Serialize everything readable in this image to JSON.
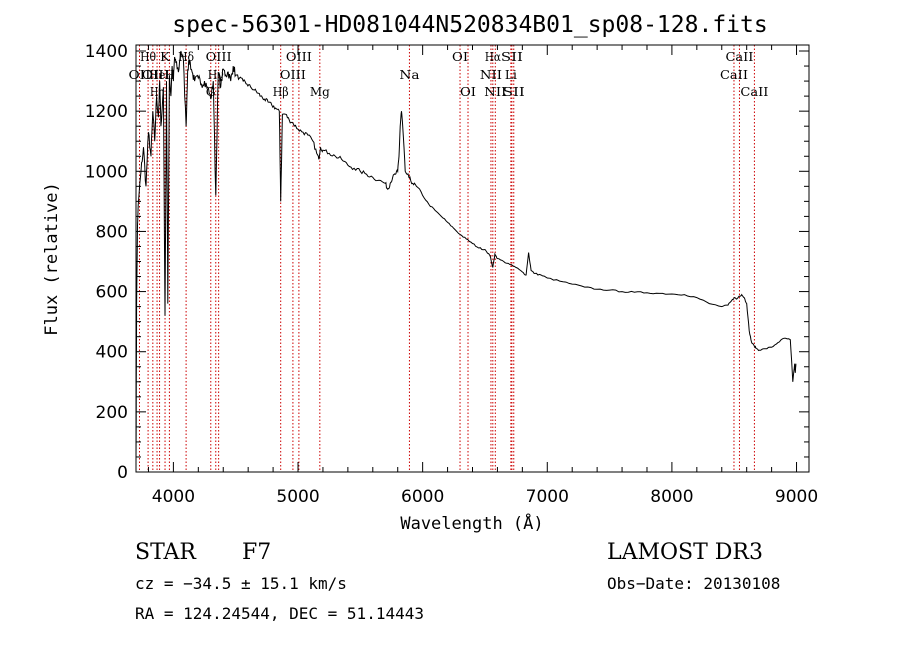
{
  "chart_data": {
    "type": "line",
    "title": "spec-56301-HD081044N520834B01_sp08-128.fits",
    "xlabel": "Wavelength (Å)",
    "ylabel": "Flux (relative)",
    "xlim": [
      3700,
      9100
    ],
    "ylim": [
      0,
      1420
    ],
    "x_ticks": [
      4000,
      5000,
      6000,
      7000,
      8000,
      9000
    ],
    "y_ticks": [
      0,
      200,
      400,
      600,
      800,
      1000,
      1200,
      1400
    ],
    "series": [
      {
        "name": "flux",
        "x": [
          3700,
          3705,
          3712,
          3720,
          3740,
          3760,
          3780,
          3800,
          3820,
          3835,
          3850,
          3865,
          3880,
          3890,
          3900,
          3920,
          3933,
          3945,
          3955,
          3968,
          3980,
          3990,
          4000,
          4010,
          4020,
          4040,
          4060,
          4080,
          4102,
          4115,
          4130,
          4150,
          4170,
          4200,
          4225,
          4250,
          4275,
          4300,
          4320,
          4340,
          4360,
          4380,
          4400,
          4420,
          4440,
          4460,
          4480,
          4500,
          4530,
          4560,
          4590,
          4620,
          4650,
          4680,
          4700,
          4730,
          4760,
          4790,
          4820,
          4850,
          4861,
          4875,
          4900,
          4930,
          4960,
          5000,
          5040,
          5080,
          5120,
          5150,
          5167,
          5180,
          5200,
          5250,
          5300,
          5350,
          5400,
          5450,
          5500,
          5550,
          5600,
          5650,
          5700,
          5720,
          5740,
          5760,
          5780,
          5800,
          5810,
          5820,
          5830,
          5840,
          5860,
          5890,
          5920,
          5950,
          6000,
          6050,
          6100,
          6150,
          6200,
          6250,
          6300,
          6350,
          6400,
          6450,
          6500,
          6540,
          6563,
          6580,
          6600,
          6650,
          6700,
          6750,
          6800,
          6830,
          6850,
          6870,
          6900,
          6950,
          7000,
          7100,
          7200,
          7300,
          7400,
          7500,
          7600,
          7700,
          7800,
          7900,
          8000,
          8100,
          8200,
          8300,
          8400,
          8450,
          8480,
          8500,
          8520,
          8540,
          8560,
          8580,
          8600,
          8620,
          8640,
          8660,
          8680,
          8700,
          8750,
          8800,
          8850,
          8900,
          8950,
          8970,
          8985,
          8990,
          8995
        ],
        "values": [
          40,
          560,
          820,
          900,
          1000,
          1080,
          950,
          1130,
          1050,
          1200,
          1100,
          1250,
          1180,
          1300,
          1150,
          1280,
          520,
          1300,
          560,
          1320,
          1250,
          1350,
          1300,
          1380,
          1360,
          1330,
          1400,
          1370,
          1150,
          1340,
          1370,
          1330,
          1300,
          1310,
          1290,
          1300,
          1280,
          1240,
          1300,
          920,
          1330,
          1280,
          1340,
          1320,
          1330,
          1300,
          1350,
          1320,
          1310,
          1300,
          1290,
          1280,
          1270,
          1260,
          1250,
          1240,
          1230,
          1220,
          1210,
          1200,
          900,
          1190,
          1190,
          1170,
          1160,
          1140,
          1130,
          1120,
          1100,
          1060,
          1040,
          1080,
          1070,
          1060,
          1050,
          1040,
          1020,
          1010,
          1000,
          990,
          980,
          970,
          960,
          940,
          960,
          980,
          990,
          1000,
          1050,
          1150,
          1200,
          1150,
          1000,
          980,
          960,
          950,
          920,
          890,
          870,
          850,
          830,
          810,
          790,
          775,
          760,
          745,
          740,
          720,
          680,
          725,
          710,
          700,
          690,
          680,
          665,
          655,
          730,
          670,
          660,
          655,
          645,
          635,
          625,
          615,
          608,
          605,
          600,
          598,
          596,
          594,
          592,
          590,
          580,
          560,
          550,
          555,
          570,
          580,
          575,
          585,
          590,
          580,
          560,
          470,
          430,
          420,
          410,
          405,
          410,
          415,
          430,
          445,
          440,
          300,
          360,
          330,
          360
        ]
      }
    ],
    "lines": [
      {
        "wl": 3728,
        "label": "OII",
        "row": 2,
        "w": 22
      },
      {
        "wl": 3797,
        "label": "Hθ",
        "row": 1,
        "w": 16
      },
      {
        "wl": 3835,
        "label": "OII",
        "row": 2,
        "w": 22
      },
      {
        "wl": 3869,
        "label": "Hη",
        "row": 3,
        "w": 14
      },
      {
        "wl": 3889,
        "label": "HeI",
        "row": 2,
        "w": 20
      },
      {
        "wl": 3933,
        "label": "K",
        "row": 1,
        "w": 10
      },
      {
        "wl": 3968,
        "label": "H",
        "row": 2,
        "w": 10
      },
      {
        "wl": 4102,
        "label": "Hδ",
        "row": 1,
        "w": 16
      },
      {
        "wl": 4300,
        "label": "G",
        "row": 3,
        "w": 10
      },
      {
        "wl": 4340,
        "label": "Hγ",
        "row": 2,
        "w": 16
      },
      {
        "wl": 4363,
        "label": "OIII",
        "row": 1,
        "w": 26
      },
      {
        "wl": 4861,
        "label": "Hβ",
        "row": 3,
        "w": 16
      },
      {
        "wl": 4959,
        "label": "OIII",
        "row": 2,
        "w": 26
      },
      {
        "wl": 5007,
        "label": "OIII",
        "row": 1,
        "w": 26
      },
      {
        "wl": 5175,
        "label": "Mg",
        "row": 3,
        "w": 20
      },
      {
        "wl": 5894,
        "label": "Na",
        "row": 2,
        "w": 20
      },
      {
        "wl": 6300,
        "label": "OI",
        "row": 1,
        "w": 16
      },
      {
        "wl": 6364,
        "label": "OI",
        "row": 3,
        "w": 16
      },
      {
        "wl": 6548,
        "label": "NII",
        "row": 2,
        "w": 22
      },
      {
        "wl": 6563,
        "label": "Hα",
        "row": 1,
        "w": 16
      },
      {
        "wl": 6583,
        "label": "NII",
        "row": 3,
        "w": 22
      },
      {
        "wl": 6708,
        "label": "Li",
        "row": 2,
        "w": 12
      },
      {
        "wl": 6716,
        "label": "SII",
        "row": 1,
        "w": 22
      },
      {
        "wl": 6731,
        "label": "SII",
        "row": 3,
        "w": 22
      },
      {
        "wl": 8498,
        "label": "CaII",
        "row": 2,
        "w": 28
      },
      {
        "wl": 8542,
        "label": "CaII",
        "row": 1,
        "w": 28
      },
      {
        "wl": 8662,
        "label": "CaII",
        "row": 3,
        "w": 28
      }
    ],
    "colors": {
      "lines": "#cc0000",
      "spectrum": "#000000",
      "axes": "#000000"
    }
  },
  "info": {
    "object_type": "STAR",
    "subclass": "F7",
    "survey": "LAMOST DR3",
    "cz": "cz = −34.5 ± 15.1 km/s",
    "obs_date": "Obs−Date: 20130108",
    "coords": "RA = 124.24544, DEC =  51.14443"
  }
}
